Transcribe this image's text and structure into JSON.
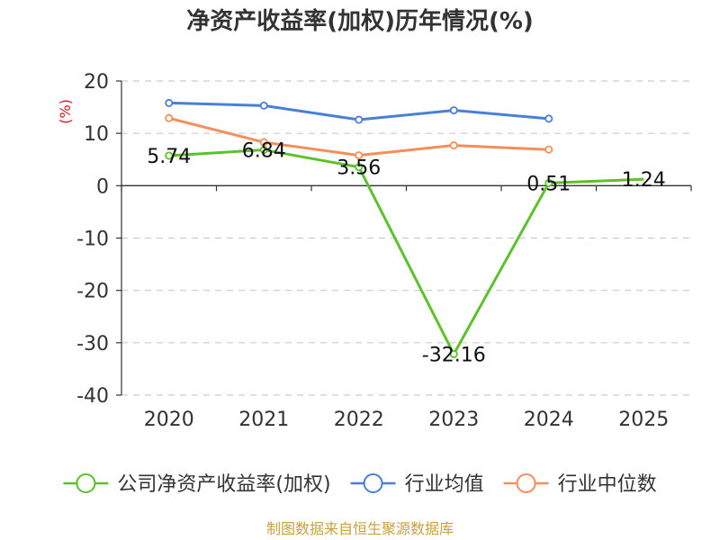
{
  "chart_data": {
    "type": "line",
    "title": "净资产收益率(加权)历年情况(%)",
    "unit_label": "(%)",
    "categories": [
      "2020",
      "2021",
      "2022",
      "2023",
      "2024",
      "2025"
    ],
    "ylim": [
      -40,
      20
    ],
    "yticks": [
      20,
      10,
      0,
      -10,
      -20,
      -30,
      -40
    ],
    "grid": true,
    "legend_position": "bottom",
    "series": [
      {
        "name": "公司净资产收益率(加权)",
        "color": "#5cc12b",
        "values": [
          5.74,
          6.84,
          3.56,
          -32.16,
          0.51,
          1.24
        ],
        "labels": [
          "5.74",
          "6.84",
          "3.56",
          "-32.16",
          "0.51",
          "1.24"
        ],
        "show_markers": [
          true,
          true,
          true,
          true,
          true,
          false
        ]
      },
      {
        "name": "行业均值",
        "color": "#4a7fd6",
        "values": [
          15.8,
          15.3,
          12.6,
          14.4,
          12.8,
          null
        ],
        "labels": null,
        "show_markers": [
          true,
          true,
          true,
          true,
          true,
          false
        ]
      },
      {
        "name": "行业中位数",
        "color": "#f48f5c",
        "values": [
          12.9,
          8.3,
          5.8,
          7.7,
          6.9,
          null
        ],
        "labels": null,
        "show_markers": [
          true,
          true,
          true,
          true,
          true,
          false
        ]
      }
    ],
    "source": "制图数据来自恒生聚源数据库"
  }
}
